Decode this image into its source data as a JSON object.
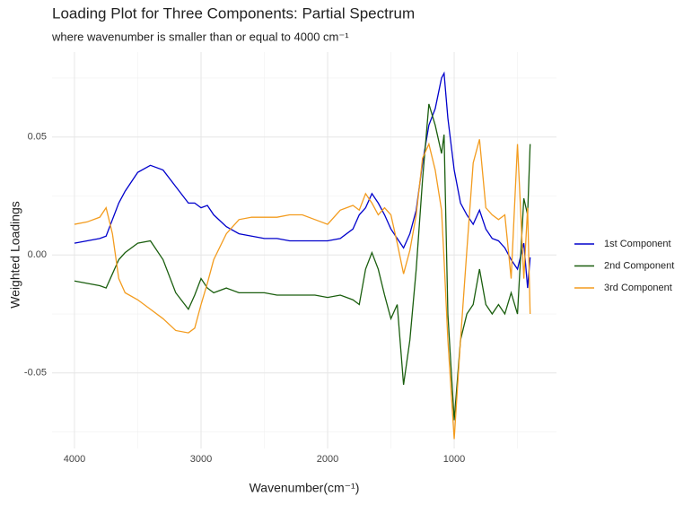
{
  "chart_data": {
    "type": "line",
    "title": "Loading Plot for Three Components: Partial Spectrum",
    "subtitle": "where wavenumber is smaller than or equal to 4000 cm⁻¹",
    "x_label": "Wavenumber(cm⁻¹)",
    "y_label": "Weighted Loadings",
    "x": [
      4000,
      3900,
      3800,
      3750,
      3700,
      3650,
      3600,
      3500,
      3400,
      3300,
      3200,
      3100,
      3050,
      3000,
      2950,
      2900,
      2800,
      2700,
      2600,
      2500,
      2400,
      2300,
      2200,
      2100,
      2000,
      1900,
      1800,
      1750,
      1700,
      1650,
      1600,
      1550,
      1500,
      1450,
      1400,
      1350,
      1300,
      1250,
      1200,
      1150,
      1100,
      1080,
      1050,
      1000,
      950,
      900,
      850,
      800,
      750,
      700,
      650,
      600,
      550,
      500,
      450,
      420,
      400
    ],
    "series": [
      {
        "name": "1st Component",
        "color": "#0000cc",
        "values": [
          0.005,
          0.006,
          0.007,
          0.008,
          0.015,
          0.022,
          0.027,
          0.035,
          0.038,
          0.036,
          0.029,
          0.022,
          0.022,
          0.02,
          0.021,
          0.017,
          0.012,
          0.009,
          0.008,
          0.007,
          0.007,
          0.006,
          0.006,
          0.006,
          0.006,
          0.007,
          0.011,
          0.017,
          0.02,
          0.026,
          0.022,
          0.017,
          0.011,
          0.007,
          0.003,
          0.009,
          0.019,
          0.039,
          0.055,
          0.062,
          0.075,
          0.077,
          0.058,
          0.036,
          0.022,
          0.017,
          0.013,
          0.019,
          0.011,
          0.007,
          0.006,
          0.003,
          -0.002,
          -0.006,
          0.005,
          -0.014,
          -0.001
        ]
      },
      {
        "name": "2nd Component",
        "color": "#1a5e0e",
        "values": [
          -0.011,
          -0.012,
          -0.013,
          -0.014,
          -0.008,
          -0.002,
          0.001,
          0.005,
          0.006,
          -0.002,
          -0.016,
          -0.023,
          -0.017,
          -0.01,
          -0.014,
          -0.016,
          -0.014,
          -0.016,
          -0.016,
          -0.016,
          -0.017,
          -0.017,
          -0.017,
          -0.017,
          -0.018,
          -0.017,
          -0.019,
          -0.021,
          -0.006,
          0.001,
          -0.006,
          -0.017,
          -0.027,
          -0.021,
          -0.055,
          -0.036,
          -0.006,
          0.032,
          0.064,
          0.055,
          0.043,
          0.051,
          -0.025,
          -0.07,
          -0.036,
          -0.025,
          -0.021,
          -0.006,
          -0.021,
          -0.025,
          -0.021,
          -0.025,
          -0.016,
          -0.025,
          0.024,
          0.017,
          0.047
        ]
      },
      {
        "name": "3rd Component",
        "color": "#f39c1f",
        "values": [
          0.013,
          0.014,
          0.016,
          0.02,
          0.009,
          -0.01,
          -0.016,
          -0.019,
          -0.023,
          -0.027,
          -0.032,
          -0.033,
          -0.031,
          -0.021,
          -0.012,
          -0.002,
          0.009,
          0.015,
          0.016,
          0.016,
          0.016,
          0.017,
          0.017,
          0.015,
          0.013,
          0.019,
          0.021,
          0.019,
          0.026,
          0.022,
          0.017,
          0.02,
          0.017,
          0.005,
          -0.008,
          0.002,
          0.017,
          0.041,
          0.047,
          0.036,
          0.019,
          -0.002,
          -0.036,
          -0.078,
          -0.036,
          0.002,
          0.039,
          0.049,
          0.02,
          0.017,
          0.015,
          0.017,
          -0.01,
          0.047,
          -0.01,
          0.02,
          -0.025
        ]
      }
    ],
    "xlim": [
      4177,
      192
    ],
    "ylim": [
      -0.082,
      0.086
    ],
    "xticks": [
      4000,
      3000,
      2000,
      1000
    ],
    "yticks": [
      -0.05,
      {
        "value": 0,
        "label": "0.00"
      },
      0.05
    ],
    "x_minor_grid": [
      3500,
      2500,
      1500,
      500
    ],
    "y_minor_grid": [
      -0.075,
      -0.025,
      0.025,
      0.075
    ],
    "grid": true,
    "legend": "right"
  }
}
